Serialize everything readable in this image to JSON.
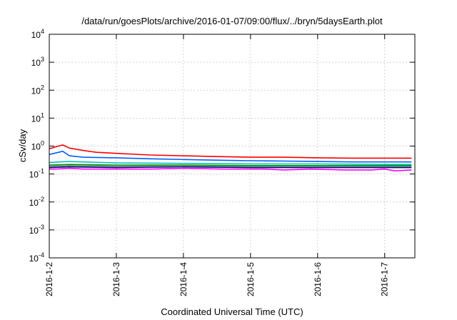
{
  "chart_data": {
    "type": "line",
    "title": "/data/run/goesPlots/archive/2016-01-07/09:00/flux/../bryn/5daysEarth.plot",
    "xlabel": "Coordinated Universal Time (UTC)",
    "ylabel": "cSv/day",
    "yscale": "log",
    "ylim": [
      0.0001,
      10000
    ],
    "xlim": [
      0,
      5.45
    ],
    "grid": true,
    "x_ticks": [
      {
        "x": 0,
        "label": "2016-1-2"
      },
      {
        "x": 1,
        "label": "2016-1-3"
      },
      {
        "x": 2,
        "label": "2016-1-4"
      },
      {
        "x": 3,
        "label": "2016-1-5"
      },
      {
        "x": 4,
        "label": "2016-1-6"
      },
      {
        "x": 5,
        "label": "2016-1-7"
      }
    ],
    "y_ticks": [
      {
        "value": 0.0001,
        "base": "10",
        "exp": "-4"
      },
      {
        "value": 0.001,
        "base": "10",
        "exp": "-3"
      },
      {
        "value": 0.01,
        "base": "10",
        "exp": "-2"
      },
      {
        "value": 0.1,
        "base": "10",
        "exp": "-1"
      },
      {
        "value": 1,
        "base": "10",
        "exp": "0"
      },
      {
        "value": 10,
        "base": "10",
        "exp": "1"
      },
      {
        "value": 100,
        "base": "10",
        "exp": "2"
      },
      {
        "value": 1000,
        "base": "10",
        "exp": "3"
      },
      {
        "value": 10000,
        "base": "10",
        "exp": "4"
      }
    ],
    "series": [
      {
        "color": "#ff00ff",
        "x": [
          0,
          0.1,
          0.3,
          0.5,
          1,
          1.5,
          2,
          2.6,
          2.9,
          3.2,
          3.5,
          3.9,
          4.4,
          4.7,
          4.8,
          5,
          5.15,
          5.4
        ],
        "y": [
          0.15,
          0.15,
          0.16,
          0.15,
          0.15,
          0.15,
          0.16,
          0.15,
          0.15,
          0.15,
          0.14,
          0.15,
          0.14,
          0.14,
          0.14,
          0.15,
          0.13,
          0.14
        ]
      },
      {
        "color": "#000080",
        "x": [
          0,
          0.3,
          1,
          2,
          3,
          4,
          5,
          5.4
        ],
        "y": [
          0.17,
          0.18,
          0.17,
          0.18,
          0.17,
          0.17,
          0.17,
          0.17
        ]
      },
      {
        "color": "#808080",
        "x": [
          0,
          0.3,
          1,
          2,
          3,
          4,
          5,
          5.4
        ],
        "y": [
          0.19,
          0.2,
          0.19,
          0.2,
          0.19,
          0.19,
          0.19,
          0.19
        ]
      },
      {
        "color": "#00a000",
        "x": [
          0,
          0.3,
          1,
          2,
          3,
          4,
          5,
          5.4
        ],
        "y": [
          0.21,
          0.22,
          0.21,
          0.21,
          0.2,
          0.2,
          0.2,
          0.2
        ]
      },
      {
        "color": "#00c0c0",
        "x": [
          0,
          0.3,
          1,
          2,
          3,
          4,
          5,
          5.4
        ],
        "y": [
          0.26,
          0.28,
          0.25,
          0.24,
          0.23,
          0.23,
          0.22,
          0.22
        ]
      },
      {
        "color": "#0060ff",
        "x": [
          0,
          0.2,
          0.3,
          0.5,
          1,
          1.5,
          2,
          2.6,
          3,
          3.5,
          4,
          4.5,
          5,
          5.4
        ],
        "y": [
          0.5,
          0.65,
          0.45,
          0.4,
          0.38,
          0.35,
          0.33,
          0.31,
          0.3,
          0.29,
          0.28,
          0.27,
          0.27,
          0.27
        ]
      },
      {
        "color": "#ff0000",
        "x": [
          0,
          0.1,
          0.2,
          0.3,
          0.5,
          0.7,
          1,
          1.5,
          2,
          2.5,
          3,
          3.5,
          4,
          4.5,
          5,
          5.4
        ],
        "y": [
          0.8,
          0.95,
          1.1,
          0.85,
          0.7,
          0.6,
          0.55,
          0.48,
          0.45,
          0.42,
          0.4,
          0.4,
          0.38,
          0.37,
          0.37,
          0.37
        ]
      }
    ]
  }
}
